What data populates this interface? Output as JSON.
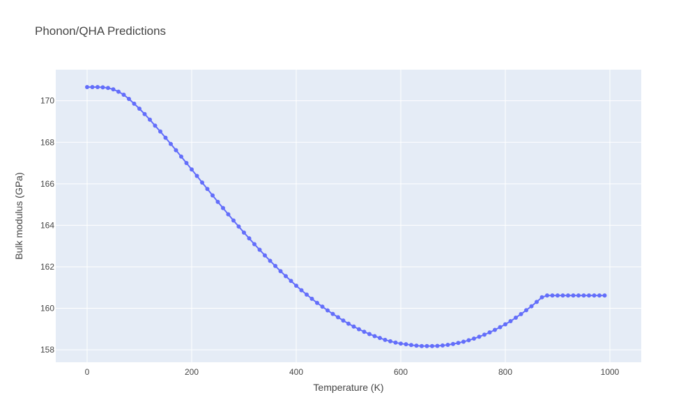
{
  "chart_data": {
    "type": "line",
    "title": "Phonon/QHA Predictions",
    "xlabel": "Temperature (K)",
    "ylabel": "Bulk modulus (GPa)",
    "xlim": [
      -60,
      1060
    ],
    "ylim": [
      157.4,
      171.5
    ],
    "xticks": [
      0,
      200,
      400,
      600,
      800,
      1000
    ],
    "yticks": [
      158,
      160,
      162,
      164,
      166,
      168,
      170
    ],
    "grid": true,
    "legend": "none",
    "colors": {
      "series": "#636efa",
      "plot_bg": "#e5ecf6",
      "grid": "#ffffff",
      "text": "#444444"
    },
    "series": [
      {
        "mode": "lines+markers",
        "x": [
          0,
          10,
          20,
          30,
          40,
          50,
          60,
          70,
          80,
          90,
          100,
          110,
          120,
          130,
          140,
          150,
          160,
          170,
          180,
          190,
          200,
          210,
          220,
          230,
          240,
          250,
          260,
          270,
          280,
          290,
          300,
          310,
          320,
          330,
          340,
          350,
          360,
          370,
          380,
          390,
          400,
          410,
          420,
          430,
          440,
          450,
          460,
          470,
          480,
          490,
          500,
          510,
          520,
          530,
          540,
          550,
          560,
          570,
          580,
          590,
          600,
          610,
          620,
          630,
          640,
          650,
          660,
          670,
          680,
          690,
          700,
          710,
          720,
          730,
          740,
          750,
          760,
          770,
          780,
          790,
          800,
          810,
          820,
          830,
          840,
          850,
          860,
          870,
          880,
          890,
          900,
          910,
          920,
          930,
          940,
          950,
          960,
          970,
          980,
          990
        ],
        "y": [
          170.66,
          170.66,
          170.66,
          170.65,
          170.62,
          170.55,
          170.44,
          170.29,
          170.09,
          169.86,
          169.62,
          169.36,
          169.09,
          168.8,
          168.52,
          168.22,
          167.92,
          167.62,
          167.31,
          167.0,
          166.69,
          166.38,
          166.06,
          165.75,
          165.44,
          165.13,
          164.83,
          164.53,
          164.23,
          163.94,
          163.65,
          163.37,
          163.09,
          162.82,
          162.55,
          162.29,
          162.04,
          161.79,
          161.55,
          161.32,
          161.09,
          160.87,
          160.66,
          160.46,
          160.26,
          160.08,
          159.9,
          159.73,
          159.57,
          159.41,
          159.26,
          159.12,
          158.99,
          158.87,
          158.76,
          158.66,
          158.57,
          158.48,
          158.41,
          158.35,
          158.3,
          158.27,
          158.23,
          158.2,
          158.18,
          158.18,
          158.18,
          158.19,
          158.21,
          158.24,
          158.28,
          158.33,
          158.39,
          158.46,
          158.54,
          158.63,
          158.73,
          158.84,
          158.96,
          159.09,
          159.23,
          159.38,
          159.55,
          159.72,
          159.91,
          160.1,
          160.31,
          160.53,
          160.62,
          160.62,
          160.62,
          160.62,
          160.62,
          160.62,
          160.62,
          160.62,
          160.62,
          160.62,
          160.62,
          160.62
        ]
      }
    ]
  }
}
